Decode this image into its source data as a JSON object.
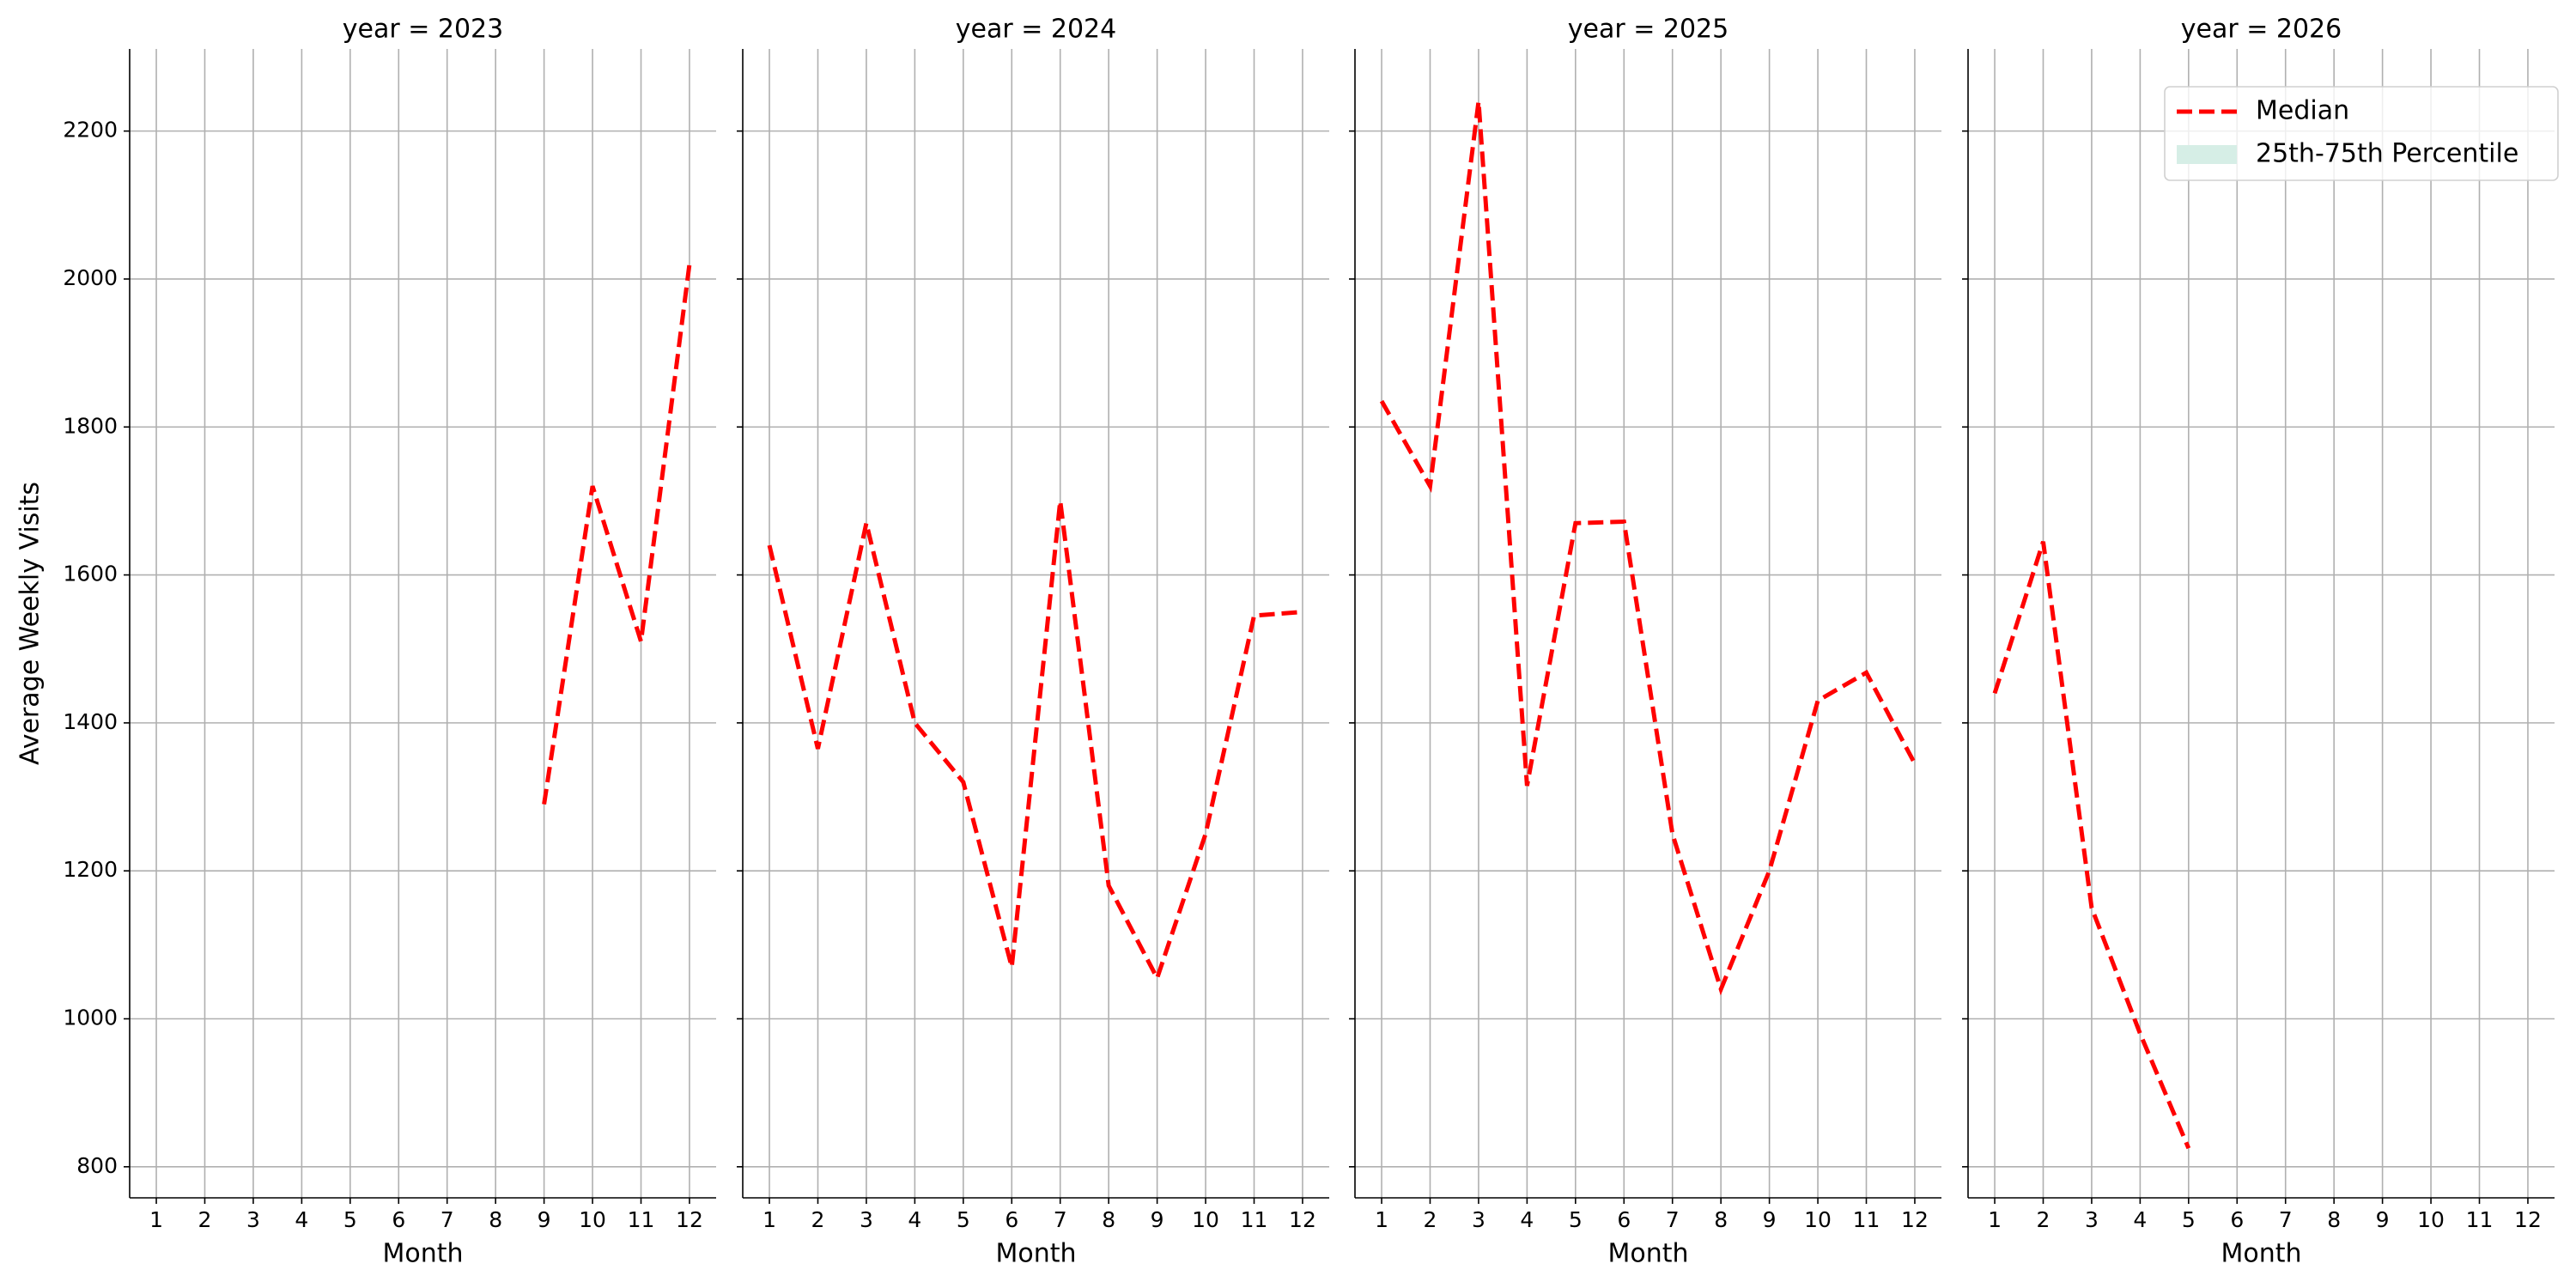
{
  "chart_data": [
    {
      "type": "line",
      "title": "year = 2023",
      "xlabel": "Month",
      "ylabel": "Average Weekly Visits",
      "xlim": [
        0.45,
        12.55
      ],
      "xticks": [
        1,
        2,
        3,
        4,
        5,
        6,
        7,
        8,
        9,
        10,
        11,
        12
      ],
      "ylim": [
        758,
        2311
      ],
      "yticks": [
        800,
        1000,
        1200,
        1400,
        1600,
        1800,
        2000,
        2200
      ],
      "grid": true,
      "x": [
        9,
        10,
        11,
        12
      ],
      "series": [
        {
          "color": "#ff0000",
          "values": [
            1290,
            1720,
            1510,
            2020
          ]
        }
      ]
    },
    {
      "type": "line",
      "title": "year = 2024",
      "xlabel": "Month",
      "xlim": [
        0.45,
        12.55
      ],
      "xticks": [
        1,
        2,
        3,
        4,
        5,
        6,
        7,
        8,
        9,
        10,
        11,
        12
      ],
      "ylim": [
        758,
        2311
      ],
      "yticks": [
        800,
        1000,
        1200,
        1400,
        1600,
        1800,
        2000,
        2200
      ],
      "grid": true,
      "x": [
        1,
        2,
        3,
        4,
        5,
        6,
        7,
        8,
        9,
        10,
        11,
        12
      ],
      "series": [
        {
          "color": "#ff0000",
          "values": [
            1640,
            1365,
            1670,
            1400,
            1320,
            1070,
            1700,
            1180,
            1055,
            1250,
            1545,
            1550
          ]
        }
      ]
    },
    {
      "type": "line",
      "title": "year = 2025",
      "xlabel": "Month",
      "xlim": [
        0.45,
        12.55
      ],
      "xticks": [
        1,
        2,
        3,
        4,
        5,
        6,
        7,
        8,
        9,
        10,
        11,
        12
      ],
      "ylim": [
        758,
        2311
      ],
      "yticks": [
        800,
        1000,
        1200,
        1400,
        1600,
        1800,
        2000,
        2200
      ],
      "grid": true,
      "x": [
        1,
        2,
        3,
        4,
        5,
        6,
        7,
        8,
        9,
        10,
        11,
        12
      ],
      "series": [
        {
          "color": "#ff0000",
          "values": [
            1835,
            1720,
            2240,
            1315,
            1670,
            1672,
            1250,
            1040,
            1200,
            1430,
            1468,
            1345
          ]
        }
      ]
    },
    {
      "type": "line",
      "title": "year = 2026",
      "xlabel": "Month",
      "xlim": [
        0.45,
        12.55
      ],
      "xticks": [
        1,
        2,
        3,
        4,
        5,
        6,
        7,
        8,
        9,
        10,
        11,
        12
      ],
      "ylim": [
        758,
        2311
      ],
      "yticks": [
        800,
        1000,
        1200,
        1400,
        1600,
        1800,
        2000,
        2200
      ],
      "grid": true,
      "x": [
        1,
        2,
        3,
        4,
        5
      ],
      "series": [
        {
          "name": "Median",
          "color": "#ff0000",
          "values": [
            1440,
            1645,
            1150,
            980,
            825
          ]
        }
      ],
      "legend": "upper right",
      "band_legend": {
        "name": "25th-75th Percentile",
        "color": "#d6eee6"
      }
    }
  ]
}
